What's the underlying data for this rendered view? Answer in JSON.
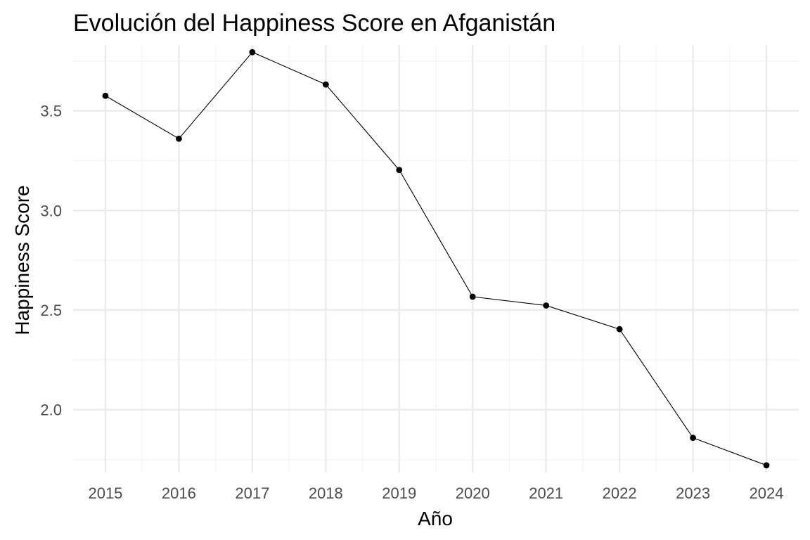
{
  "chart_data": {
    "type": "line",
    "title": "Evolución del Happiness Score en Afganistán",
    "xlabel": "Año",
    "ylabel": "Happiness Score",
    "x": [
      2015,
      2016,
      2017,
      2018,
      2019,
      2020,
      2021,
      2022,
      2023,
      2024
    ],
    "series": [
      {
        "values": [
          3.575,
          3.36,
          3.794,
          3.632,
          3.203,
          2.567,
          2.523,
          2.404,
          1.859,
          1.721
        ]
      }
    ],
    "xlim": [
      2014.56,
      2024.44
    ],
    "ylim": [
      1.685,
      3.83
    ],
    "x_ticks": [
      2015,
      2016,
      2017,
      2018,
      2019,
      2020,
      2021,
      2022,
      2023,
      2024
    ],
    "y_ticks": [
      2.0,
      2.5,
      3.0,
      3.5
    ],
    "y_tick_labels": [
      "2.0",
      "2.5",
      "3.0",
      "3.5"
    ],
    "y_minor_ticks": [
      1.75,
      2.25,
      2.75,
      3.25,
      3.75
    ],
    "grid": true,
    "legend": "none",
    "colors": {
      "line": "#000000",
      "points": "#000000",
      "grid_major": "#ebebeb",
      "grid_minor": "#f5f5f5",
      "background": "#ffffff"
    }
  }
}
